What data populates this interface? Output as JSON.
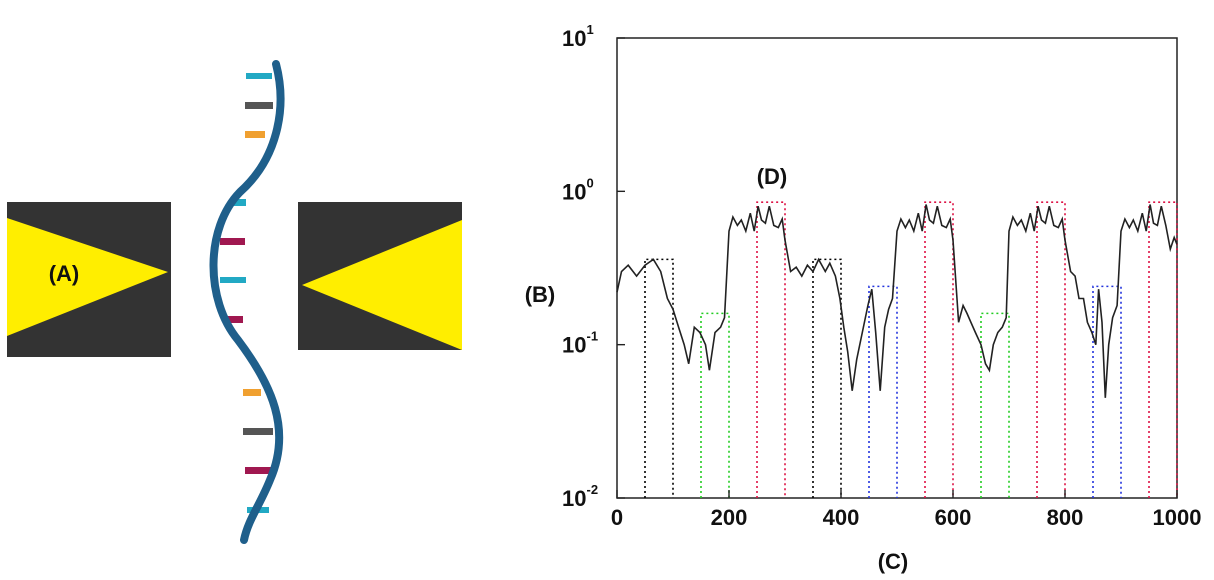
{
  "figure": {
    "label_a": "(A)",
    "label_b": "(B)",
    "label_c": "(C)",
    "label_d": "(D)"
  },
  "colors": {
    "electrode_dark": "#333333",
    "electrode_yellow": "#ffee00",
    "backbone": "#1f5f8b",
    "base_cyan": "#22a9c4",
    "base_gray": "#555555",
    "base_orange": "#f0a030",
    "base_magenta": "#a01850"
  },
  "chart_data": {
    "type": "line",
    "title": "",
    "xlabel": "(C)",
    "ylabel": "(B)",
    "xlim": [
      0,
      1000
    ],
    "ylim": [
      0.01,
      10
    ],
    "y_scale": "log",
    "x_ticks": [
      "0",
      "200",
      "400",
      "600",
      "800",
      "1000"
    ],
    "y_ticks": [
      {
        "base": "10",
        "exp": "-2"
      },
      {
        "base": "10",
        "exp": "-1"
      },
      {
        "base": "10",
        "exp": "0"
      },
      {
        "base": "10",
        "exp": "1"
      }
    ],
    "series": [
      {
        "points": [
          [
            0,
            0.22
          ],
          [
            8,
            0.3
          ],
          [
            20,
            0.33
          ],
          [
            35,
            0.28
          ],
          [
            50,
            0.33
          ],
          [
            65,
            0.36
          ],
          [
            78,
            0.3
          ],
          [
            90,
            0.2
          ],
          [
            100,
            0.17
          ],
          [
            110,
            0.13
          ],
          [
            120,
            0.1
          ],
          [
            128,
            0.075
          ],
          [
            138,
            0.13
          ],
          [
            148,
            0.12
          ],
          [
            158,
            0.1
          ],
          [
            165,
            0.068
          ],
          [
            175,
            0.12
          ],
          [
            185,
            0.13
          ],
          [
            192,
            0.15
          ],
          [
            200,
            0.55
          ],
          [
            207,
            0.68
          ],
          [
            215,
            0.6
          ],
          [
            222,
            0.65
          ],
          [
            230,
            0.55
          ],
          [
            238,
            0.72
          ],
          [
            245,
            0.55
          ],
          [
            252,
            0.8
          ],
          [
            258,
            0.65
          ],
          [
            265,
            0.62
          ],
          [
            272,
            0.8
          ],
          [
            280,
            0.6
          ],
          [
            288,
            0.58
          ],
          [
            295,
            0.66
          ],
          [
            300,
            0.48
          ],
          [
            310,
            0.3
          ],
          [
            320,
            0.32
          ],
          [
            330,
            0.28
          ],
          [
            340,
            0.33
          ],
          [
            350,
            0.3
          ],
          [
            360,
            0.36
          ],
          [
            372,
            0.3
          ],
          [
            380,
            0.34
          ],
          [
            390,
            0.28
          ],
          [
            398,
            0.2
          ],
          [
            405,
            0.13
          ],
          [
            412,
            0.09
          ],
          [
            420,
            0.05
          ],
          [
            428,
            0.08
          ],
          [
            438,
            0.12
          ],
          [
            448,
            0.18
          ],
          [
            455,
            0.23
          ],
          [
            462,
            0.12
          ],
          [
            470,
            0.05
          ],
          [
            478,
            0.13
          ],
          [
            485,
            0.17
          ],
          [
            492,
            0.2
          ],
          [
            500,
            0.55
          ],
          [
            507,
            0.66
          ],
          [
            515,
            0.58
          ],
          [
            522,
            0.65
          ],
          [
            530,
            0.55
          ],
          [
            538,
            0.72
          ],
          [
            545,
            0.55
          ],
          [
            552,
            0.82
          ],
          [
            558,
            0.65
          ],
          [
            565,
            0.62
          ],
          [
            572,
            0.8
          ],
          [
            580,
            0.6
          ],
          [
            588,
            0.58
          ],
          [
            595,
            0.66
          ],
          [
            600,
            0.48
          ],
          [
            610,
            0.14
          ],
          [
            618,
            0.18
          ],
          [
            625,
            0.16
          ],
          [
            632,
            0.14
          ],
          [
            640,
            0.12
          ],
          [
            650,
            0.1
          ],
          [
            658,
            0.075
          ],
          [
            665,
            0.068
          ],
          [
            672,
            0.1
          ],
          [
            680,
            0.12
          ],
          [
            688,
            0.13
          ],
          [
            695,
            0.15
          ],
          [
            700,
            0.55
          ],
          [
            707,
            0.68
          ],
          [
            715,
            0.6
          ],
          [
            722,
            0.65
          ],
          [
            730,
            0.55
          ],
          [
            738,
            0.72
          ],
          [
            745,
            0.55
          ],
          [
            752,
            0.8
          ],
          [
            758,
            0.65
          ],
          [
            765,
            0.62
          ],
          [
            772,
            0.8
          ],
          [
            780,
            0.6
          ],
          [
            788,
            0.58
          ],
          [
            795,
            0.66
          ],
          [
            800,
            0.48
          ],
          [
            810,
            0.3
          ],
          [
            818,
            0.28
          ],
          [
            825,
            0.2
          ],
          [
            833,
            0.2
          ],
          [
            840,
            0.14
          ],
          [
            848,
            0.12
          ],
          [
            855,
            0.1
          ],
          [
            860,
            0.23
          ],
          [
            866,
            0.14
          ],
          [
            872,
            0.045
          ],
          [
            878,
            0.1
          ],
          [
            885,
            0.15
          ],
          [
            893,
            0.18
          ],
          [
            900,
            0.55
          ],
          [
            907,
            0.66
          ],
          [
            915,
            0.58
          ],
          [
            922,
            0.65
          ],
          [
            930,
            0.55
          ],
          [
            938,
            0.72
          ],
          [
            945,
            0.55
          ],
          [
            952,
            0.82
          ],
          [
            958,
            0.62
          ],
          [
            965,
            0.6
          ],
          [
            972,
            0.8
          ],
          [
            980,
            0.6
          ],
          [
            988,
            0.42
          ],
          [
            995,
            0.5
          ],
          [
            1000,
            0.45
          ]
        ]
      }
    ],
    "boxes": [
      {
        "x": [
          50,
          100
        ],
        "top": 0.36,
        "color": "#000000"
      },
      {
        "x": [
          150,
          200
        ],
        "top": 0.16,
        "color": "#22cc22"
      },
      {
        "x": [
          250,
          300
        ],
        "top": 0.85,
        "color": "#dd1144"
      },
      {
        "x": [
          350,
          400
        ],
        "top": 0.36,
        "color": "#000000"
      },
      {
        "x": [
          450,
          500
        ],
        "top": 0.24,
        "color": "#2233dd"
      },
      {
        "x": [
          550,
          600
        ],
        "top": 0.85,
        "color": "#dd1144"
      },
      {
        "x": [
          650,
          700
        ],
        "top": 0.16,
        "color": "#22cc22"
      },
      {
        "x": [
          750,
          800
        ],
        "top": 0.85,
        "color": "#dd1144"
      },
      {
        "x": [
          850,
          900
        ],
        "top": 0.24,
        "color": "#2233dd"
      },
      {
        "x": [
          950,
          1000
        ],
        "top": 0.85,
        "color": "#dd1144"
      }
    ],
    "grid": false,
    "legend": "none"
  }
}
